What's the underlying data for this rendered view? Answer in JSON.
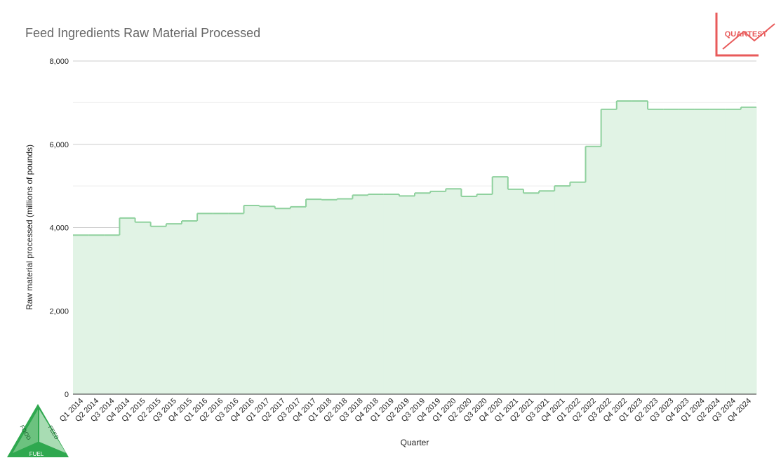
{
  "chart_data": {
    "type": "step-area",
    "title": "Feed Ingredients Raw Material Processed",
    "x_label": "Quarter",
    "y_label": "Raw material processed (millions of pounds)",
    "categories": [
      "Q1 2014",
      "Q2 2014",
      "Q3 2014",
      "Q4 2014",
      "Q1 2015",
      "Q2 2015",
      "Q3 2015",
      "Q4 2015",
      "Q1 2016",
      "Q2 2016",
      "Q3 2016",
      "Q4 2016",
      "Q1 2017",
      "Q2 2017",
      "Q3 2017",
      "Q4 2017",
      "Q1 2018",
      "Q2 2018",
      "Q3 2018",
      "Q4 2018",
      "Q1 2019",
      "Q2 2019",
      "Q3 2019",
      "Q4 2019",
      "Q1 2020",
      "Q2 2020",
      "Q3 2020",
      "Q4 2020",
      "Q1 2021",
      "Q2 2021",
      "Q3 2021",
      "Q4 2021",
      "Q1 2022",
      "Q2 2022",
      "Q3 2022",
      "Q4 2022",
      "Q1 2023",
      "Q2 2023",
      "Q3 2023",
      "Q4 2023",
      "Q1 2024",
      "Q2 2024",
      "Q3 2024",
      "Q4 2024"
    ],
    "values": [
      3820,
      3820,
      3820,
      4230,
      4130,
      4030,
      4090,
      4160,
      4340,
      4340,
      4340,
      4530,
      4510,
      4460,
      4500,
      4680,
      4670,
      4690,
      4780,
      4800,
      4800,
      4760,
      4830,
      4870,
      4930,
      4750,
      4800,
      5220,
      4920,
      4830,
      4880,
      5000,
      5090,
      5950,
      6840,
      7040,
      7040,
      6840,
      6840,
      6840,
      6840,
      6840,
      6840,
      6890
    ],
    "color": "#8fd19e",
    "fill": "#e1f3e5",
    "ylim": [
      0,
      8000
    ],
    "yticks": [
      0,
      {
        "value": 2000,
        "label": "2,000"
      },
      {
        "value": 4000,
        "label": "4,000"
      },
      {
        "value": 6000,
        "label": "6,000"
      },
      {
        "value": 8000,
        "label": "8,000"
      }
    ],
    "minor_yticks": [
      1000,
      3000,
      5000,
      7000
    ],
    "grid": true
  },
  "logos": {
    "brand": "QUARTEST",
    "triangle": [
      "FOOD",
      "FEED",
      "FUEL"
    ]
  }
}
